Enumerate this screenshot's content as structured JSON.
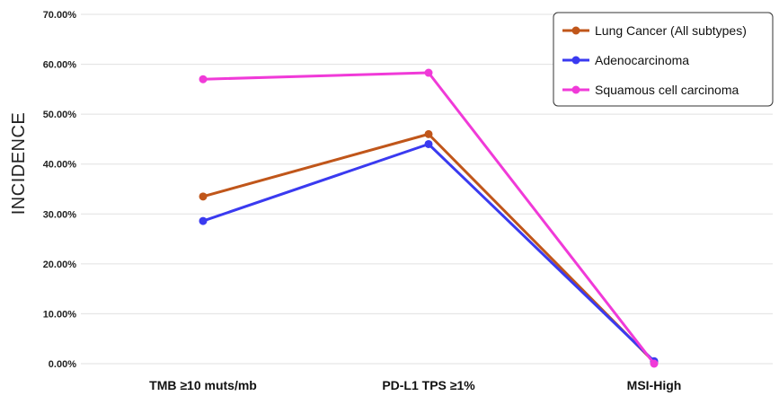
{
  "chart_data": {
    "type": "line",
    "title": "",
    "xlabel": "",
    "ylabel": "INCIDENCE",
    "categories": [
      "TMB ≥10 muts/mb",
      "PD-L1 TPS ≥1%",
      "MSI-High"
    ],
    "ylim": [
      0,
      70
    ],
    "yticks": [
      "0.00%",
      "10.00%",
      "20.00%",
      "30.00%",
      "40.00%",
      "50.00%",
      "60.00%",
      "70.00%"
    ],
    "grid": true,
    "legend_position": "top-right",
    "series": [
      {
        "name": "Lung Cancer (All subtypes)",
        "color": "#c0561a",
        "values": [
          33.5,
          46.0,
          0.3
        ]
      },
      {
        "name": "Adenocarcinoma",
        "color": "#3a3af0",
        "values": [
          28.6,
          44.0,
          0.5
        ]
      },
      {
        "name": "Squamous cell carcinoma",
        "color": "#f03ad8",
        "values": [
          57.0,
          58.3,
          0.0
        ]
      }
    ]
  }
}
